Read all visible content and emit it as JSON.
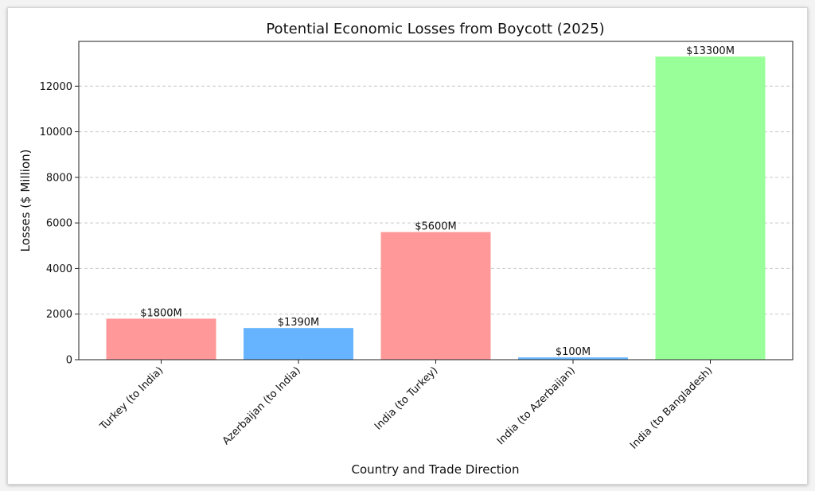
{
  "chart_data": {
    "type": "bar",
    "title": "Potential Economic Losses from Boycott (2025)",
    "xlabel": "Country and Trade Direction",
    "ylabel": "Losses ($ Million)",
    "categories": [
      "Turkey (to India)",
      "Azerbaijan (to India)",
      "India (to Turkey)",
      "India (to Azerbaijan)",
      "India (to Bangladesh)"
    ],
    "values": [
      1800,
      1390,
      5600,
      100,
      13300
    ],
    "value_labels": [
      "$1800M",
      "$1390M",
      "$5600M",
      "$100M",
      "$13300M"
    ],
    "colors": [
      "#ff9999",
      "#66b3ff",
      "#ff9999",
      "#66b3ff",
      "#99ff99"
    ],
    "ylim": [
      0,
      13965
    ],
    "yticks": [
      0,
      2000,
      4000,
      6000,
      8000,
      10000,
      12000
    ],
    "grid": "y-dashed",
    "legend": "none"
  }
}
